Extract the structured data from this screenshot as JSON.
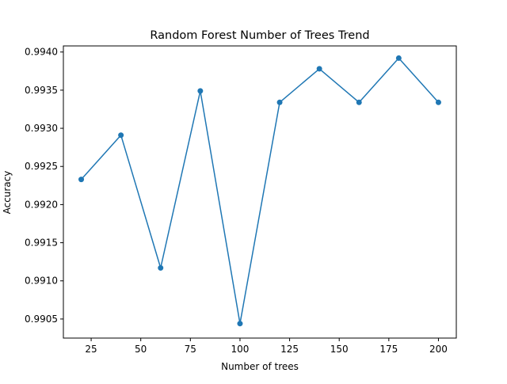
{
  "chart_data": {
    "type": "line",
    "title": "Random Forest Number of Trees Trend",
    "xlabel": "Number of trees",
    "ylabel": "Accuracy",
    "xlim": [
      11,
      209
    ],
    "ylim": [
      0.99025,
      0.99408
    ],
    "xticks": [
      "25",
      "50",
      "75",
      "100",
      "125",
      "150",
      "175",
      "200"
    ],
    "yticks": [
      "0.9905",
      "0.9910",
      "0.9915",
      "0.9920",
      "0.9925",
      "0.9930",
      "0.9935",
      "0.9940"
    ],
    "grid": false,
    "series": [
      {
        "color": "#1f77b4",
        "marker": "circle",
        "x": [
          20,
          40,
          60,
          80,
          100,
          120,
          140,
          160,
          180,
          200
        ],
        "y": [
          0.99233,
          0.99291,
          0.99117,
          0.99349,
          0.99044,
          0.99334,
          0.99378,
          0.99334,
          0.99392,
          0.99334
        ]
      }
    ]
  }
}
